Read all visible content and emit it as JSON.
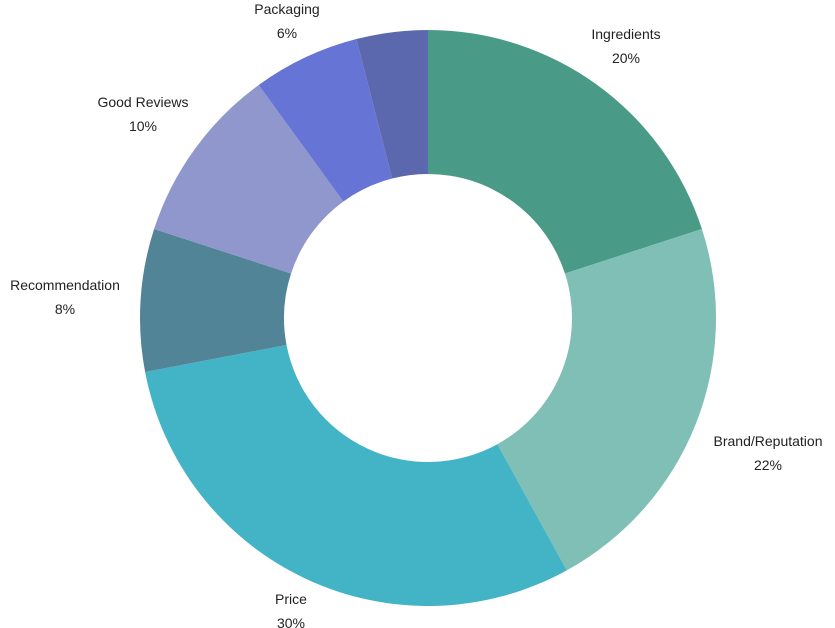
{
  "chart_data": {
    "type": "pie",
    "donut": true,
    "title": "",
    "legend": "none",
    "slices": [
      {
        "label": "Ingredients",
        "value": 20,
        "value_label": "20%",
        "color": "#4a9a88"
      },
      {
        "label": "Brand/Reputation",
        "value": 22,
        "value_label": "22%",
        "color": "#7fbfb6"
      },
      {
        "label": "Price",
        "value": 30,
        "value_label": "30%",
        "color": "#43b4c6"
      },
      {
        "label": "Recommendation",
        "value": 8,
        "value_label": "8%",
        "color": "#528498"
      },
      {
        "label": "Good Reviews",
        "value": 10,
        "value_label": "10%",
        "color": "#8f97cc"
      },
      {
        "label": "Packaging",
        "value": 6,
        "value_label": "6%",
        "color": "#6574d5"
      },
      {
        "label": "",
        "value": 4,
        "value_label": "",
        "color": "#5b68ad"
      }
    ]
  }
}
